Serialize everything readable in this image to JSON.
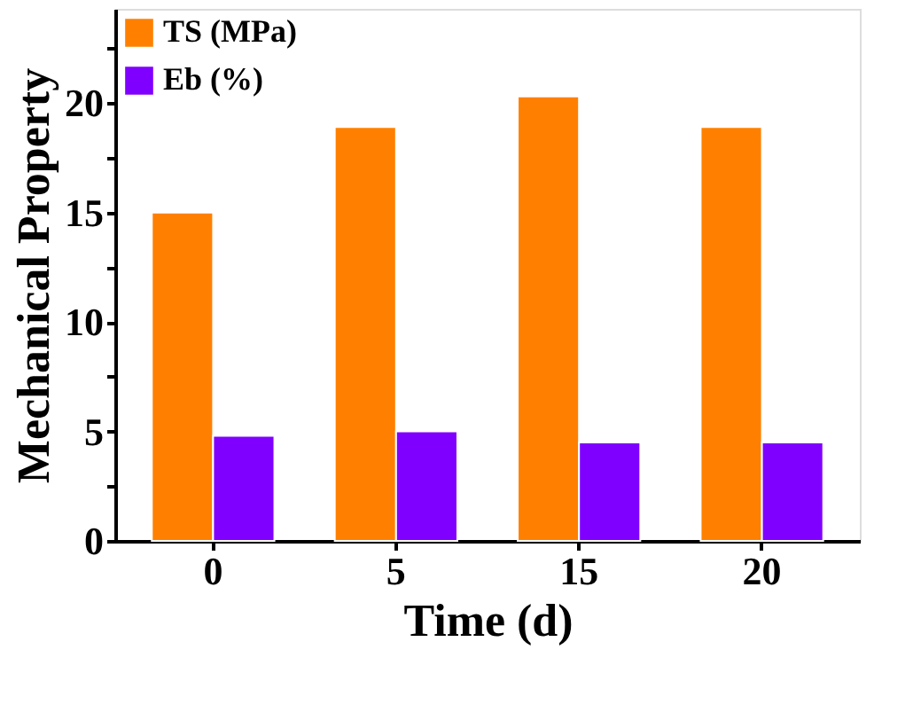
{
  "chart_data": {
    "type": "bar",
    "xlabel": "Time (d)",
    "ylabel": "Mechanical Property",
    "categories": [
      "0",
      "5",
      "15",
      "20"
    ],
    "series": [
      {
        "name": "TS (MPa)",
        "color": "#ff8000",
        "values": [
          15.0,
          18.9,
          20.3,
          18.9
        ]
      },
      {
        "name": "Eb (%)",
        "color": "#8000ff",
        "values": [
          4.8,
          5.0,
          4.5,
          4.5
        ]
      }
    ],
    "ylim": [
      0,
      24.3
    ],
    "yticks": [
      0,
      {
        "value": 2.5,
        "label": null
      },
      5,
      {
        "value": 7.5,
        "label": null
      },
      10,
      {
        "value": 12.5,
        "label": null
      },
      15,
      {
        "value": 17.5,
        "label": null
      },
      20,
      {
        "value": 22.5,
        "label": null
      }
    ],
    "legend": "top left",
    "grid": false
  }
}
